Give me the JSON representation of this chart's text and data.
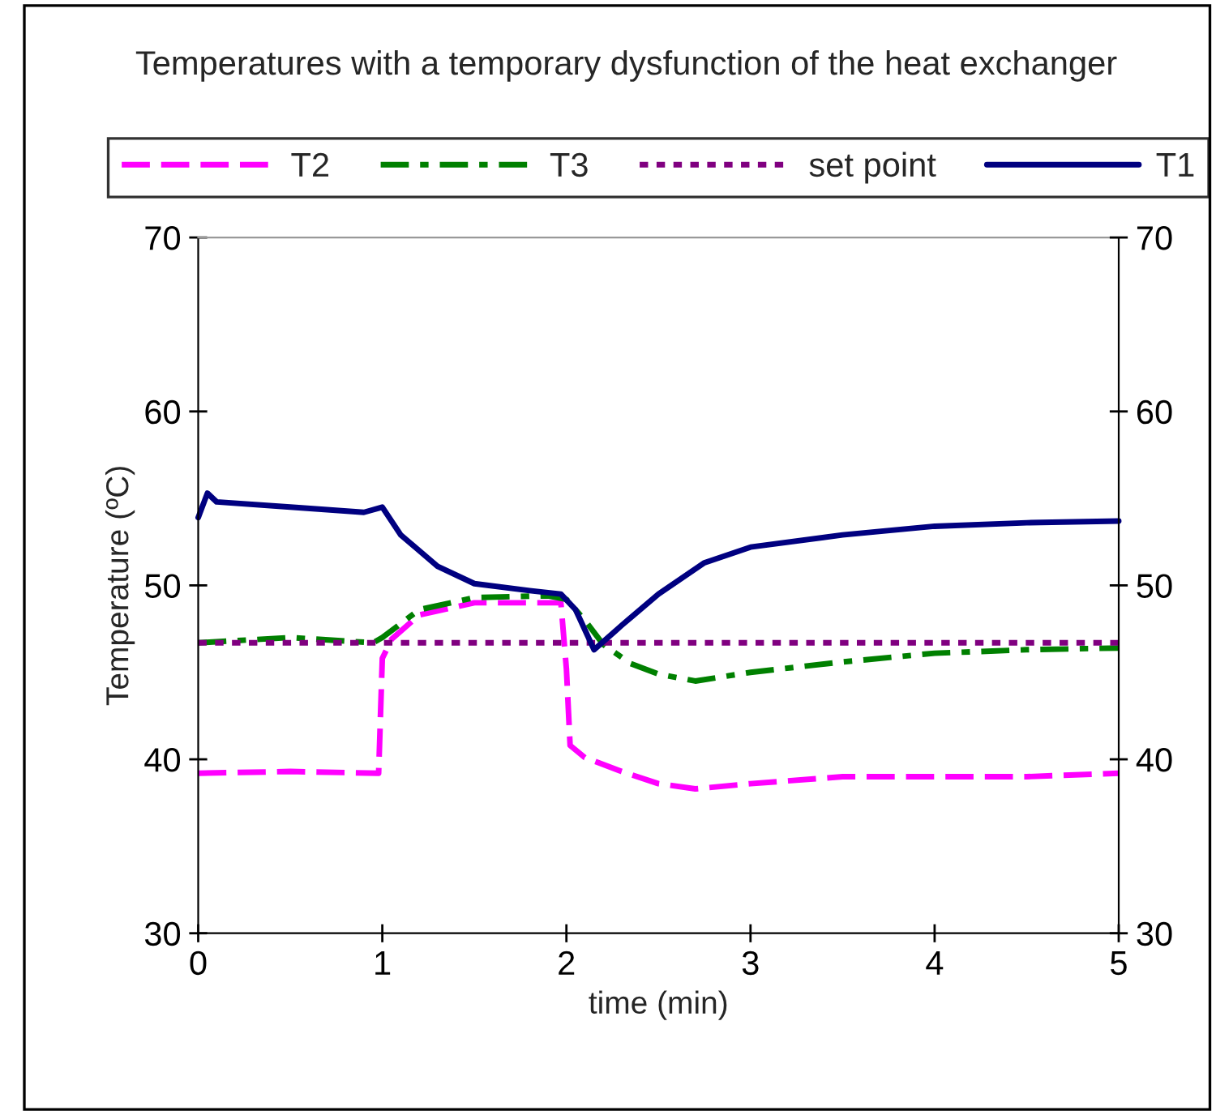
{
  "chart_data": {
    "type": "line",
    "title": "Temperatures with a temporary dysfunction of the heat exchanger",
    "xlabel": "time (min)",
    "ylabel": "Temperature (ºC)",
    "xlim": [
      0,
      5
    ],
    "xticks": [
      0,
      1,
      2,
      3,
      4,
      5
    ],
    "ylim": [
      30,
      70
    ],
    "yticks": [
      30,
      40,
      50,
      60,
      70
    ],
    "y2lim": [
      30,
      70
    ],
    "y2ticks": [
      30,
      40,
      50,
      60,
      70
    ],
    "grid": false,
    "legend": "top",
    "marker": "none",
    "series": [
      {
        "name": "T2",
        "color": "#ff00ff",
        "line_style": "dashed",
        "x": [
          0,
          0.5,
          0.98,
          1.0,
          1.05,
          1.2,
          1.5,
          1.97,
          2.0,
          2.02,
          2.1,
          2.3,
          2.5,
          2.7,
          3,
          3.5,
          4,
          4.5,
          5
        ],
        "values": [
          39.2,
          39.3,
          39.2,
          45.8,
          46.9,
          48.3,
          49.0,
          49.0,
          45.2,
          40.8,
          40.1,
          39.3,
          38.6,
          38.3,
          38.6,
          39.0,
          39.0,
          39.0,
          39.2
        ]
      },
      {
        "name": "T3",
        "color": "#008000",
        "line_style": "dashdot",
        "x": [
          0,
          0.5,
          0.95,
          1.0,
          1.2,
          1.5,
          1.9,
          2.0,
          2.1,
          2.2,
          2.35,
          2.5,
          2.7,
          3,
          3.5,
          4,
          4.5,
          5
        ],
        "values": [
          46.7,
          47.0,
          46.7,
          47.0,
          48.6,
          49.3,
          49.4,
          49.2,
          48.0,
          46.6,
          45.5,
          44.9,
          44.5,
          45.0,
          45.6,
          46.1,
          46.3,
          46.4
        ]
      },
      {
        "name": "set point",
        "color": "#800080",
        "line_style": "dotted",
        "x": [
          0,
          5
        ],
        "values": [
          46.7,
          46.7
        ]
      },
      {
        "name": "T1",
        "color": "#000080",
        "line_style": "solid",
        "x": [
          0,
          0.05,
          0.1,
          0.5,
          0.9,
          1.0,
          1.1,
          1.3,
          1.5,
          1.8,
          1.97,
          2.05,
          2.15,
          2.3,
          2.5,
          2.75,
          3,
          3.5,
          4,
          4.5,
          5
        ],
        "values": [
          53.9,
          55.3,
          54.8,
          54.5,
          54.2,
          54.5,
          52.9,
          51.1,
          50.1,
          49.7,
          49.5,
          48.6,
          46.3,
          47.7,
          49.5,
          51.3,
          52.2,
          52.9,
          53.4,
          53.6,
          53.7
        ]
      }
    ]
  }
}
